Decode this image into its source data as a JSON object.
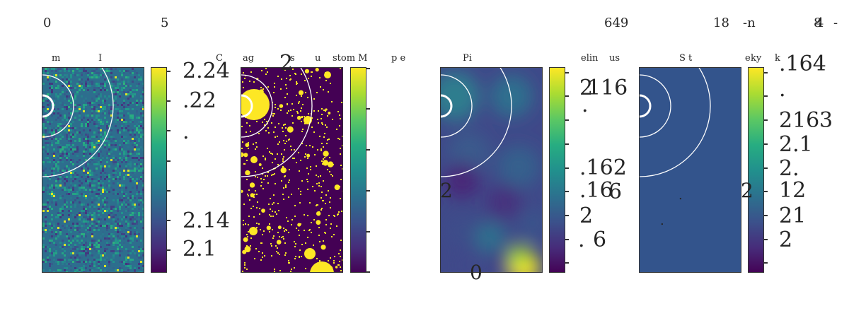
{
  "top_labels": [
    "0",
    "5",
    "649",
    "18",
    "-n",
    "8",
    "4",
    "-"
  ],
  "panels": [
    {
      "id": "p1",
      "title_parts": [
        "m",
        "I"
      ],
      "fill": "#2e6f8e",
      "image": "noise"
    },
    {
      "id": "p2",
      "title_parts": [
        "C",
        "ag",
        "s",
        "u",
        "stom M",
        "p e"
      ],
      "fill": "#440154",
      "image": "mask",
      "overlay_label": "2"
    },
    {
      "id": "p3",
      "title_parts": [
        "Pi"
      ],
      "fill": "#355f8d",
      "image": "smooth"
    },
    {
      "id": "p4",
      "title_parts": [
        "S t"
      ],
      "fill": "#33548c",
      "image": "flat"
    }
  ],
  "panel_title_right": {
    "p3_a": "elin",
    "p3_b": "us",
    "p4_a": "e",
    "p4_b": "ky",
    "p4_c": "k"
  },
  "colorbars": {
    "cb1": {
      "labels": [
        "2.24",
        ".22",
        ".",
        "2.14",
        "2.1"
      ]
    },
    "cb2": {
      "labels": []
    },
    "cb3": {
      "labels": [
        "2",
        "116",
        ".",
        ".162",
        ".16",
        "6",
        "2",
        ".",
        "6"
      ]
    },
    "cb4": {
      "labels": [
        ".164",
        ".",
        "216",
        "3",
        "2.1",
        "2.",
        "12",
        "21",
        "2"
      ]
    }
  },
  "stray_labels": {
    "left_2": "2",
    "bottom_0": "0",
    "mid_2": "2",
    "dot_a": ".",
    "dot_b": "."
  },
  "chart_data": {
    "type": "heatmap",
    "colormap": "viridis",
    "panel_count": 4,
    "colorbar_ticks": {
      "panel_1": [
        "2.24",
        ".22",
        ".",
        "2.14",
        "2.1"
      ],
      "panel_3": [
        "2",
        "116",
        ".",
        ".162",
        ".16",
        "6",
        "2",
        ".",
        "6"
      ],
      "panel_4": [
        ".164",
        ".",
        "216",
        "3",
        "2.1",
        "2.",
        "12",
        "21",
        "2"
      ]
    },
    "grid": false
  }
}
